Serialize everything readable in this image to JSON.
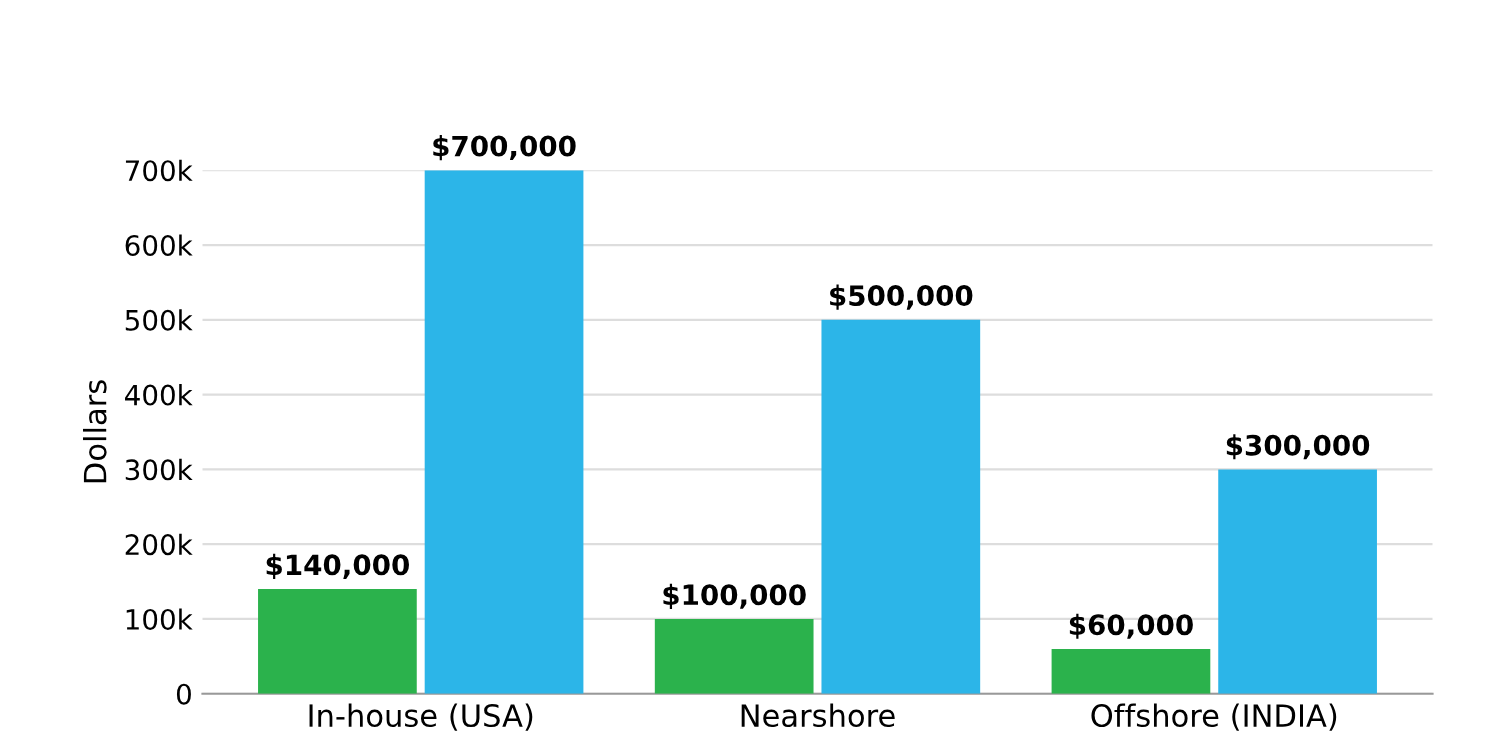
{
  "chart_data": {
    "type": "bar",
    "ylabel": "Dollars",
    "categories": [
      "In-house (USA)",
      "Nearshore",
      "Offshore (INDIA)"
    ],
    "series": [
      {
        "color": "#2bb24c",
        "values": [
          140000,
          100000,
          60000
        ],
        "value_labels": [
          "$140,000",
          "$100,000",
          "$60,000"
        ]
      },
      {
        "color": "#2cb5e8",
        "values": [
          700000,
          500000,
          300000
        ],
        "value_labels": [
          "$700,000",
          "$500,000",
          "$300,000"
        ]
      }
    ],
    "ylim": [
      0,
      700000
    ],
    "yticks": [
      0,
      {
        "value": 100000,
        "label": "100k"
      },
      {
        "value": 200000,
        "label": "200k"
      },
      {
        "value": 300000,
        "label": "300k"
      },
      {
        "value": 400000,
        "label": "400k"
      },
      {
        "value": 500000,
        "label": "500k"
      },
      {
        "value": 600000,
        "label": "600k"
      },
      {
        "value": 700000,
        "label": "700k"
      }
    ],
    "grid": "y",
    "legend": false
  }
}
